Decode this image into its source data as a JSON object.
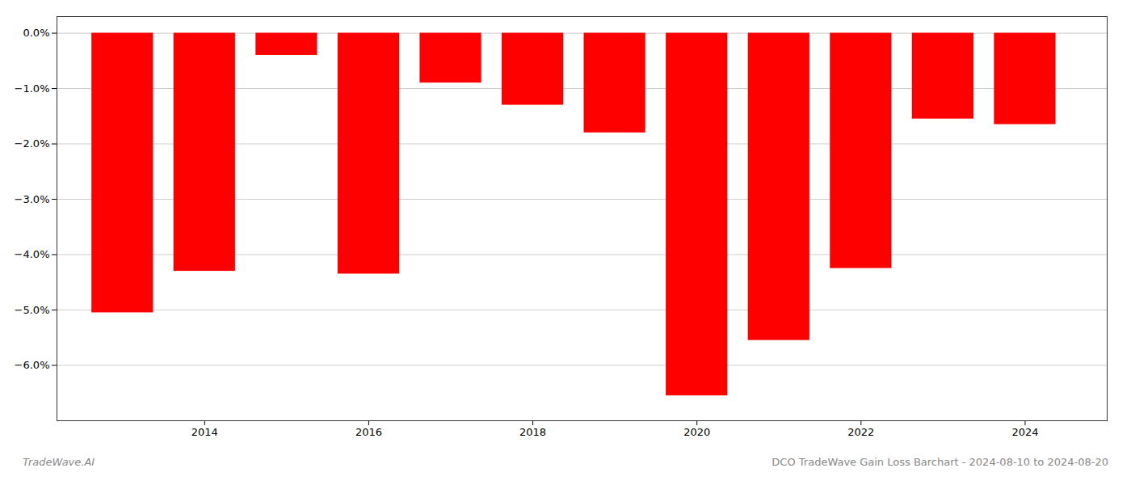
{
  "chart_data": {
    "type": "bar",
    "title": "DCO TradeWave Gain Loss Barchart - 2024-08-10 to 2024-08-20",
    "annotations": [
      "TradeWave.AI"
    ],
    "x": [
      2013,
      2014,
      2015,
      2016,
      2017,
      2018,
      2019,
      2020,
      2021,
      2022,
      2023,
      2024
    ],
    "values": [
      -5.05,
      -4.3,
      -0.4,
      -4.35,
      -0.9,
      -1.3,
      -1.8,
      -6.55,
      -5.55,
      -4.25,
      -1.55,
      -1.65
    ],
    "color": "#ff0000",
    "xlim": [
      2012.2,
      2025.0
    ],
    "xticks": [
      2014,
      2016,
      2018,
      2020,
      2022,
      2024
    ],
    "ylim": [
      -7.0,
      0.3
    ],
    "yticks": [
      {
        "value": 0.0,
        "label": "0.0%"
      },
      {
        "value": -1.0,
        "label": "−1.0%"
      },
      {
        "value": -2.0,
        "label": "−2.0%"
      },
      {
        "value": -3.0,
        "label": "−3.0%"
      },
      {
        "value": -4.0,
        "label": "−4.0%"
      },
      {
        "value": -5.0,
        "label": "−5.0%"
      },
      {
        "value": -6.0,
        "label": "−6.0%"
      }
    ],
    "grid": true
  }
}
